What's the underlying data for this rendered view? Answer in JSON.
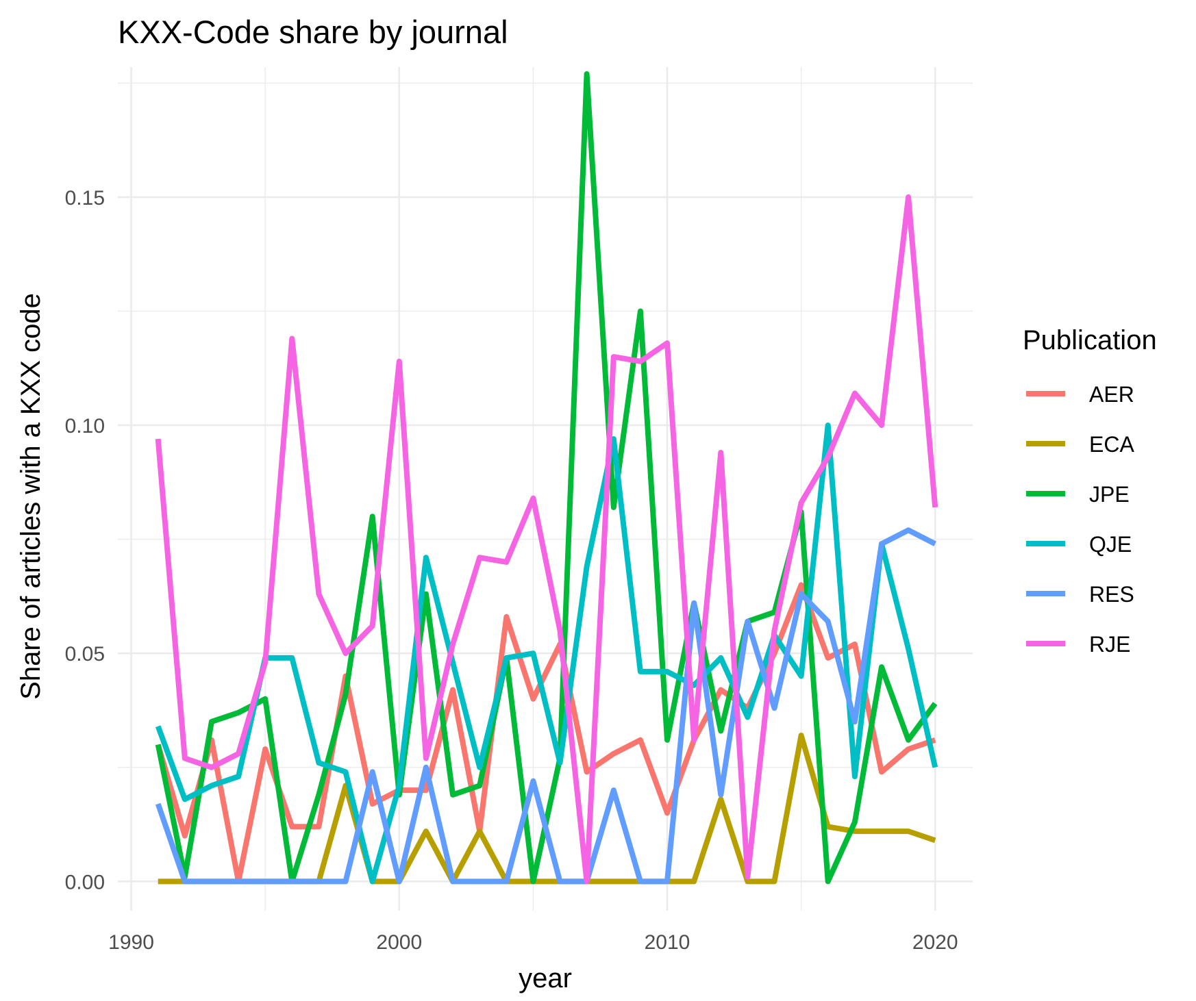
{
  "chart_data": {
    "type": "line",
    "title": "KXX-Code share by journal",
    "xlabel": "year",
    "ylabel": "Share of articles with a KXX code",
    "xlim": [
      1989.5,
      2021.4
    ],
    "ylim": [
      -0.0064,
      0.1785
    ],
    "x_ticks": [
      1990,
      2000,
      2010,
      2020
    ],
    "x_tick_labels": [
      "1990",
      "2000",
      "2010",
      "2020"
    ],
    "y_ticks": [
      0.0,
      0.05,
      0.1,
      0.15
    ],
    "y_tick_labels": [
      "0.00",
      "0.05",
      "0.10",
      "0.15"
    ],
    "grid": true,
    "legend": {
      "title": "Publication",
      "position": "right"
    },
    "x": [
      1991,
      1992,
      1993,
      1994,
      1995,
      1996,
      1997,
      1998,
      1999,
      2000,
      2001,
      2002,
      2003,
      2004,
      2005,
      2006,
      2007,
      2008,
      2009,
      2010,
      2011,
      2012,
      2013,
      2014,
      2015,
      2016,
      2017,
      2018,
      2019,
      2020
    ],
    "series": [
      {
        "name": "AER",
        "color": "#F8766D",
        "values": [
          0.03,
          0.01,
          0.031,
          0.0,
          0.029,
          0.012,
          0.012,
          0.045,
          0.017,
          0.02,
          0.02,
          0.042,
          0.011,
          0.058,
          0.04,
          0.052,
          0.024,
          0.028,
          0.031,
          0.015,
          0.031,
          0.042,
          0.038,
          0.05,
          0.065,
          0.049,
          0.052,
          0.024,
          0.029,
          0.031
        ]
      },
      {
        "name": "ECA",
        "color": "#B79F00",
        "values": [
          0.0,
          0.0,
          0.0,
          0.0,
          0.0,
          0.0,
          0.0,
          0.021,
          0.0,
          0.0,
          0.011,
          0.0,
          0.011,
          0.0,
          0.0,
          0.0,
          0.0,
          0.0,
          0.0,
          0.0,
          0.0,
          0.018,
          0.0,
          0.0,
          0.032,
          0.012,
          0.011,
          0.011,
          0.011,
          0.009
        ]
      },
      {
        "name": "JPE",
        "color": "#00BA38",
        "values": [
          0.03,
          0.001,
          0.035,
          0.037,
          0.04,
          0.0,
          0.019,
          0.041,
          0.08,
          0.019,
          0.063,
          0.019,
          0.021,
          0.049,
          0.0,
          0.027,
          0.177,
          0.082,
          0.125,
          0.031,
          0.061,
          0.033,
          0.057,
          0.059,
          0.081,
          0.0,
          0.013,
          0.047,
          0.031,
          0.039
        ]
      },
      {
        "name": "QJE",
        "color": "#00BFC4",
        "values": [
          0.034,
          0.018,
          0.021,
          0.023,
          0.049,
          0.049,
          0.026,
          0.024,
          0.0,
          0.021,
          0.071,
          0.048,
          0.025,
          0.049,
          0.05,
          0.026,
          0.069,
          0.097,
          0.046,
          0.046,
          0.043,
          0.049,
          0.036,
          0.054,
          0.045,
          0.1,
          0.023,
          0.074,
          0.051,
          0.025
        ]
      },
      {
        "name": "RES",
        "color": "#619CFF",
        "values": [
          0.017,
          0.0,
          0.0,
          0.0,
          0.0,
          0.0,
          0.0,
          0.0,
          0.024,
          0.0,
          0.025,
          0.0,
          0.0,
          0.0,
          0.022,
          0.0,
          0.0,
          0.02,
          0.0,
          0.0,
          0.061,
          0.019,
          0.057,
          0.038,
          0.063,
          0.057,
          0.035,
          0.074,
          0.077,
          0.074
        ]
      },
      {
        "name": "RJE",
        "color": "#F564E3",
        "values": [
          0.097,
          0.027,
          0.025,
          0.028,
          0.048,
          0.119,
          0.063,
          0.05,
          0.056,
          0.114,
          0.027,
          0.052,
          0.071,
          0.07,
          0.084,
          0.055,
          0.0,
          0.115,
          0.114,
          0.118,
          0.031,
          0.094,
          0.001,
          0.055,
          0.083,
          0.093,
          0.107,
          0.1,
          0.15,
          0.082
        ]
      }
    ]
  }
}
